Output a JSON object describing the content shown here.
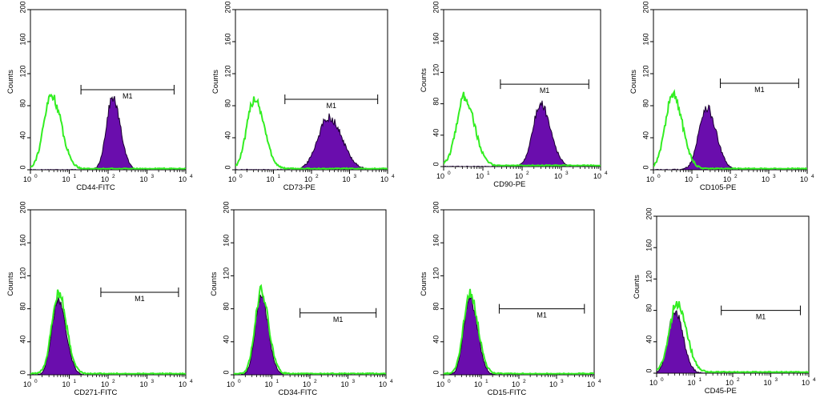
{
  "colors": {
    "histogram_fill": "#6a0dad",
    "histogram_edge": "#1a0030",
    "control_line": "#33ee22",
    "axis": "#000000"
  },
  "chart_data": [
    {
      "type": "histogram",
      "panel": "CD44",
      "xlabel": "CD44-FITC",
      "ylabel": "Counts",
      "x_scale": "log",
      "xlim": [
        1,
        10000
      ],
      "ylim": [
        0,
        200
      ],
      "yticks": [
        "0",
        "40",
        "80",
        "120",
        "160",
        "200"
      ],
      "xticks": [
        "10",
        "10",
        "10",
        "10",
        "10"
      ],
      "xtick_exps": [
        "0",
        "1",
        "2",
        "3",
        "4"
      ],
      "marker": {
        "label": "M1",
        "range": [
          20,
          5000
        ],
        "level": 100
      },
      "control": {
        "peak_x": 3.5,
        "peak": 92,
        "sigma": 0.2
      },
      "stained": {
        "peak_x": 130,
        "peak": 90,
        "sigma": 0.16
      }
    },
    {
      "type": "histogram",
      "panel": "CD73",
      "xlabel": "CD73-PE",
      "ylabel": "Counts",
      "x_scale": "log",
      "xlim": [
        1,
        10000
      ],
      "ylim": [
        0,
        200
      ],
      "yticks": [
        "0",
        "40",
        "80",
        "120",
        "160",
        "200"
      ],
      "xticks": [
        "10",
        "10",
        "10",
        "10",
        "10"
      ],
      "xtick_exps": [
        "0",
        "1",
        "2",
        "3",
        "4"
      ],
      "marker": {
        "label": "M1",
        "range": [
          20,
          5500
        ],
        "level": 88
      },
      "control": {
        "peak_x": 3.2,
        "peak": 88,
        "sigma": 0.2
      },
      "stained": {
        "peak_x": 280,
        "peak": 66,
        "sigma": 0.28
      }
    },
    {
      "type": "histogram",
      "panel": "CD90",
      "xlabel": "CD90-PE",
      "ylabel": "Counts",
      "x_scale": "log",
      "xlim": [
        1,
        10000
      ],
      "ylim": [
        0,
        200
      ],
      "yticks": [
        "0",
        "40",
        "80",
        "120",
        "160",
        "200"
      ],
      "xticks": [
        "10",
        "10",
        "10",
        "10",
        "10"
      ],
      "xtick_exps": [
        "0",
        "1",
        "2",
        "3",
        "4"
      ],
      "marker": {
        "label": "M1",
        "range": [
          28,
          5000
        ],
        "level": 105
      },
      "control": {
        "peak_x": 3.4,
        "peak": 88,
        "sigma": 0.2
      },
      "stained": {
        "peak_x": 300,
        "peak": 80,
        "sigma": 0.2
      }
    },
    {
      "type": "histogram",
      "panel": "CD105",
      "xlabel": "CD105-PE",
      "ylabel": "Counts",
      "x_scale": "log",
      "xlim": [
        1,
        10000
      ],
      "ylim": [
        0,
        200
      ],
      "yticks": [
        "0",
        "40",
        "80",
        "120",
        "160",
        "200"
      ],
      "xticks": [
        "10",
        "10",
        "10",
        "10",
        "10"
      ],
      "xtick_exps": [
        "0",
        "1",
        "2",
        "3",
        "4"
      ],
      "marker": {
        "label": "M1",
        "range": [
          55,
          6000
        ],
        "level": 108
      },
      "control": {
        "peak_x": 3.2,
        "peak": 92,
        "sigma": 0.2
      },
      "stained": {
        "peak_x": 24,
        "peak": 78,
        "sigma": 0.2
      }
    },
    {
      "type": "histogram",
      "panel": "CD271",
      "xlabel": "CD271-FITC",
      "ylabel": "Counts",
      "x_scale": "log",
      "xlim": [
        1,
        10000
      ],
      "ylim": [
        0,
        200
      ],
      "yticks": [
        "0",
        "40",
        "80",
        "120",
        "160",
        "200"
      ],
      "xticks": [
        "10",
        "10",
        "10",
        "10",
        "10"
      ],
      "xtick_exps": [
        "0",
        "1",
        "2",
        "3",
        "4"
      ],
      "marker": {
        "label": "M1",
        "range": [
          65,
          6500
        ],
        "level": 100
      },
      "control": {
        "peak_x": 5.2,
        "peak": 98,
        "sigma": 0.17
      },
      "stained": {
        "peak_x": 5.2,
        "peak": 92,
        "sigma": 0.16
      }
    },
    {
      "type": "histogram",
      "panel": "CD34",
      "xlabel": "CD34-FITC",
      "ylabel": "Counts",
      "x_scale": "log",
      "xlim": [
        1,
        10000
      ],
      "ylim": [
        0,
        200
      ],
      "yticks": [
        "0",
        "40",
        "80",
        "120",
        "160",
        "200"
      ],
      "xticks": [
        "10",
        "10",
        "10",
        "10",
        "10"
      ],
      "xtick_exps": [
        "0",
        "1",
        "2",
        "3",
        "4"
      ],
      "marker": {
        "label": "M1",
        "range": [
          55,
          5500
        ],
        "level": 75
      },
      "control": {
        "peak_x": 5.2,
        "peak": 100,
        "sigma": 0.16
      },
      "stained": {
        "peak_x": 5.2,
        "peak": 96,
        "sigma": 0.15
      }
    },
    {
      "type": "histogram",
      "panel": "CD15",
      "xlabel": "CD15-FITC",
      "ylabel": "Counts",
      "x_scale": "log",
      "xlim": [
        1,
        10000
      ],
      "ylim": [
        0,
        200
      ],
      "yticks": [
        "0",
        "40",
        "80",
        "120",
        "160",
        "200"
      ],
      "xticks": [
        "10",
        "10",
        "10",
        "10",
        "10"
      ],
      "xtick_exps": [
        "0",
        "1",
        "2",
        "3",
        "4"
      ],
      "marker": {
        "label": "M1",
        "range": [
          30,
          5500
        ],
        "level": 80
      },
      "control": {
        "peak_x": 5.0,
        "peak": 98,
        "sigma": 0.17
      },
      "stained": {
        "peak_x": 5.0,
        "peak": 92,
        "sigma": 0.16
      }
    },
    {
      "type": "histogram",
      "panel": "CD45",
      "xlabel": "CD45-PE",
      "ylabel": "Counts",
      "x_scale": "log",
      "xlim": [
        1,
        10000
      ],
      "ylim": [
        0,
        200
      ],
      "yticks": [
        "0",
        "40",
        "80",
        "120",
        "160",
        "200"
      ],
      "xticks": [
        "10",
        "10",
        "10",
        "10",
        "10"
      ],
      "xtick_exps": [
        "0",
        "1",
        "2",
        "3",
        "4"
      ],
      "marker": {
        "label": "M1",
        "range": [
          50,
          6000
        ],
        "level": 80
      },
      "control": {
        "peak_x": 3.4,
        "peak": 88,
        "sigma": 0.2
      },
      "stained": {
        "peak_x": 3.0,
        "peak": 80,
        "sigma": 0.17
      }
    }
  ]
}
